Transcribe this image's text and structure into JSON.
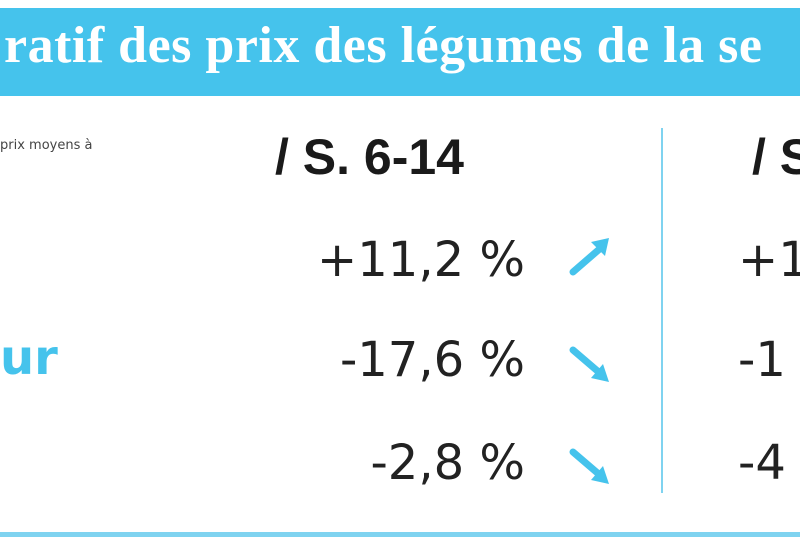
{
  "header": {
    "title": "ratif des prix des légumes de la se"
  },
  "table": {
    "note": "prix moyens à",
    "columns": [
      "/ S. 6-14",
      "/ S"
    ],
    "rows": [
      {
        "values": [
          "+11,2 %",
          "+1"
        ]
      },
      {
        "label": "ur",
        "values": [
          "-17,6 %",
          "-1"
        ]
      },
      {
        "values": [
          "-2,8 %",
          "-4"
        ]
      }
    ]
  }
}
